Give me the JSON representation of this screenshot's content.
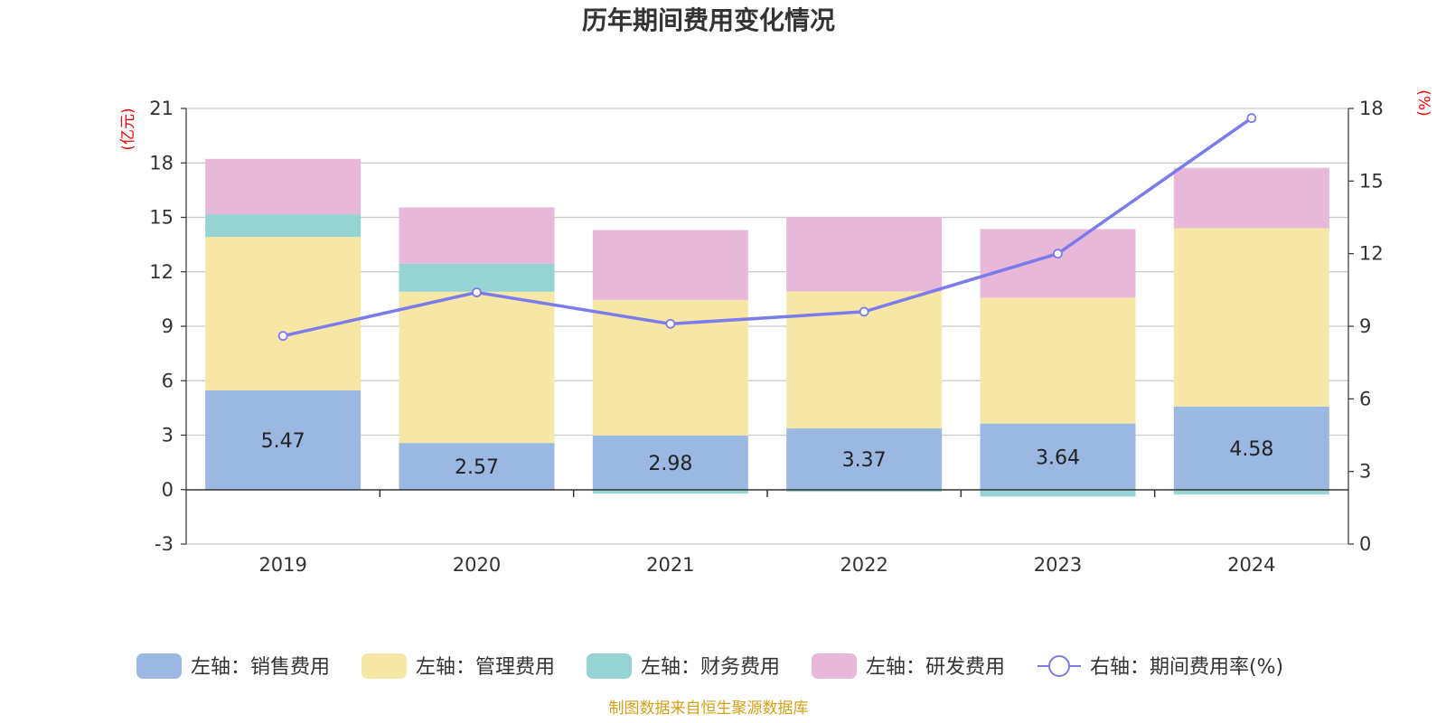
{
  "title": "历年期间费用变化情况",
  "source": "制图数据来自恒生聚源数据库",
  "colors": {
    "sales": "#9bb8e2",
    "admin": "#f7e7a6",
    "finance": "#96d4d4",
    "rd": "#e8b8d8",
    "rate": "#7b7bec",
    "unit": "#ff0000",
    "source": "#d4a017"
  },
  "chart_data": {
    "type": "bar",
    "stacked": true,
    "title": "历年期间费用变化情况",
    "categories": [
      "2019",
      "2020",
      "2021",
      "2022",
      "2023",
      "2024"
    ],
    "left_axis": {
      "unit": "(亿元)",
      "ticks": [
        "21",
        "18",
        "15",
        "12",
        "9",
        "6",
        "3",
        "0",
        "-3"
      ],
      "ylim": [
        -3,
        21
      ]
    },
    "right_axis": {
      "unit": "(%)",
      "ticks": [
        "18",
        "15",
        "12",
        "9",
        "6",
        "3",
        "0"
      ],
      "ylim": [
        0,
        18
      ]
    },
    "series": [
      {
        "key": "sales",
        "name": "左轴：销售费用",
        "values": [
          5.47,
          2.57,
          2.98,
          3.37,
          3.64,
          4.58
        ],
        "labels": [
          "5.47",
          "2.57",
          "2.98",
          "3.37",
          "3.64",
          "4.58"
        ]
      },
      {
        "key": "admin",
        "name": "左轴：管理费用",
        "values": [
          8.45,
          8.33,
          7.47,
          7.55,
          6.93,
          9.82
        ]
      },
      {
        "key": "finance",
        "name": "左轴：财务费用",
        "values": [
          1.25,
          1.55,
          -0.22,
          -0.12,
          -0.38,
          -0.27
        ]
      },
      {
        "key": "rd",
        "name": "左轴：研发费用",
        "values": [
          3.05,
          3.1,
          3.85,
          4.08,
          3.78,
          3.33
        ]
      }
    ],
    "line": {
      "key": "rate",
      "name": "右轴：期间费用率(%)",
      "values": [
        8.6,
        10.4,
        9.1,
        9.6,
        12.0,
        17.6
      ]
    },
    "legend": [
      "左轴：销售费用",
      "左轴：管理费用",
      "左轴：财务费用",
      "左轴：研发费用",
      "右轴：期间费用率(%)"
    ]
  }
}
